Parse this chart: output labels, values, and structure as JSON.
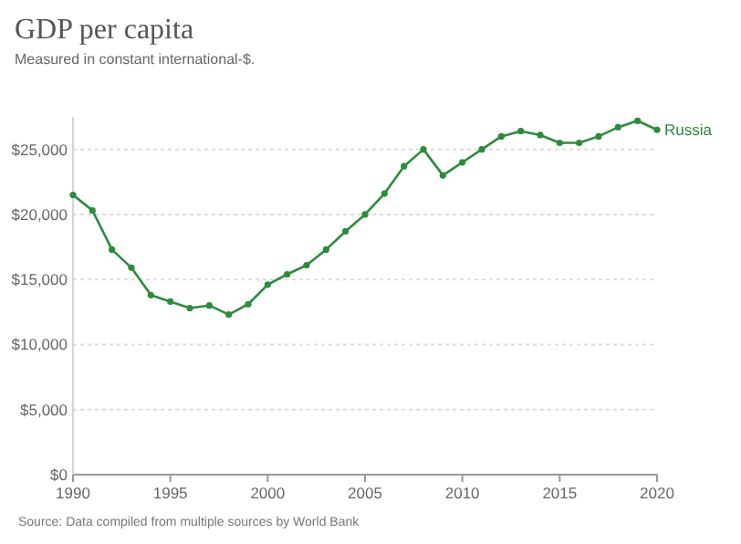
{
  "chart_data": {
    "type": "line",
    "title": "GDP per capita",
    "subtitle": "Measured in constant international-$.",
    "annotations": [
      "Source: Data compiled from multiple sources by World Bank"
    ],
    "x": [
      1990,
      1991,
      1992,
      1993,
      1994,
      1995,
      1996,
      1997,
      1998,
      1999,
      2000,
      2001,
      2002,
      2003,
      2004,
      2005,
      2006,
      2007,
      2008,
      2009,
      2010,
      2011,
      2012,
      2013,
      2014,
      2015,
      2016,
      2017,
      2018,
      2019,
      2020
    ],
    "series": [
      {
        "name": "Russia",
        "color": "#2e8b3e",
        "values": [
          21500,
          20300,
          17300,
          15900,
          13800,
          13300,
          12800,
          13000,
          12300,
          13100,
          14600,
          15400,
          16100,
          17300,
          18700,
          20000,
          21600,
          23700,
          25000,
          23000,
          24000,
          25000,
          26000,
          26400,
          26100,
          25500,
          25500,
          26000,
          26700,
          27200,
          26500
        ]
      }
    ],
    "xlim": [
      1990,
      2020
    ],
    "xticks": [
      1990,
      1995,
      2000,
      2005,
      2010,
      2015,
      2020
    ],
    "ylim": [
      0,
      27500
    ],
    "yticks": [
      {
        "value": 0,
        "label": "$0"
      },
      {
        "value": 5000,
        "label": "$5,000"
      },
      {
        "value": 10000,
        "label": "$10,000"
      },
      {
        "value": 15000,
        "label": "$15,000"
      },
      {
        "value": 20000,
        "label": "$20,000"
      },
      {
        "value": 25000,
        "label": "$25,000"
      }
    ],
    "grid": "y",
    "marker": "circle",
    "line_style": "solid"
  }
}
